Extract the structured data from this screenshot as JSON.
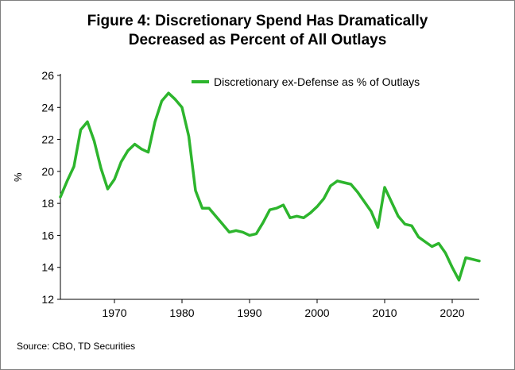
{
  "page": {
    "title_line1": "Figure 4: Discretionary Spend Has Dramatically",
    "title_line2": "Decreased as Percent of All Outlays",
    "source": "Source: CBO, TD Securities"
  },
  "chart_data": {
    "type": "line",
    "title": "Figure 4: Discretionary Spend Has Dramatically Decreased as Percent of All Outlays",
    "xlabel": "",
    "ylabel": "%",
    "xlim": [
      1962,
      2024
    ],
    "ylim": [
      12,
      26
    ],
    "x_ticks": [
      1970,
      1980,
      1990,
      2000,
      2010,
      2020
    ],
    "y_ticks": [
      12,
      14,
      16,
      18,
      20,
      22,
      24,
      26
    ],
    "grid": false,
    "legend_position": "top-right",
    "series": [
      {
        "name": "Discretionary ex-Defense as % of Outlays",
        "color": "#2db52d",
        "x": [
          1962,
          1963,
          1964,
          1965,
          1966,
          1967,
          1968,
          1969,
          1970,
          1971,
          1972,
          1973,
          1974,
          1975,
          1976,
          1977,
          1978,
          1979,
          1980,
          1981,
          1982,
          1983,
          1984,
          1985,
          1986,
          1987,
          1988,
          1989,
          1990,
          1991,
          1992,
          1993,
          1994,
          1995,
          1996,
          1997,
          1998,
          1999,
          2000,
          2001,
          2002,
          2003,
          2004,
          2005,
          2006,
          2007,
          2008,
          2009,
          2010,
          2011,
          2012,
          2013,
          2014,
          2015,
          2016,
          2017,
          2018,
          2019,
          2020,
          2021,
          2022,
          2023,
          2024
        ],
        "y": [
          18.4,
          19.4,
          20.3,
          22.6,
          23.1,
          21.9,
          20.2,
          18.9,
          19.5,
          20.6,
          21.3,
          21.7,
          21.4,
          21.2,
          23.1,
          24.4,
          24.9,
          24.5,
          24.0,
          22.2,
          18.8,
          17.7,
          17.7,
          17.2,
          16.7,
          16.2,
          16.3,
          16.2,
          16.0,
          16.1,
          16.8,
          17.6,
          17.7,
          17.9,
          17.1,
          17.2,
          17.1,
          17.4,
          17.8,
          18.3,
          19.1,
          19.4,
          19.3,
          19.2,
          18.7,
          18.1,
          17.5,
          16.5,
          19.0,
          18.1,
          17.2,
          16.7,
          16.6,
          15.9,
          15.6,
          15.3,
          15.5,
          14.9,
          14.0,
          13.2,
          14.6,
          14.5,
          14.4
        ]
      }
    ]
  }
}
